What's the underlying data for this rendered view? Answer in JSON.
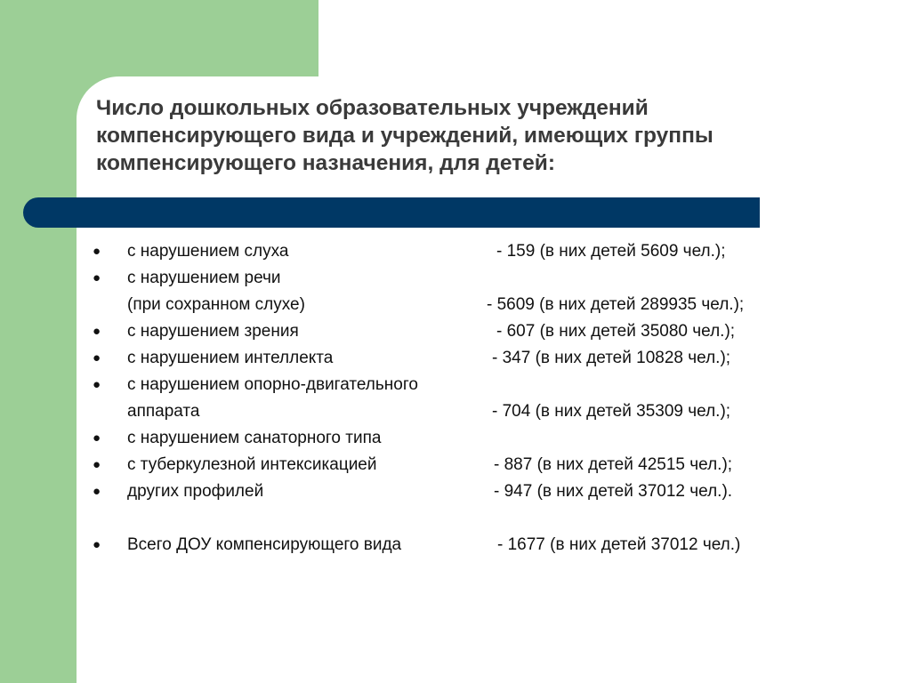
{
  "title_lines": [
    "Число дошкольных образовательных учреждений",
    "компенсирующего вида и учреждений, имеющих группы",
    "компенсирующего назначения, для детей:"
  ],
  "bullet_char": "●",
  "rows": [
    {
      "label": "с нарушением слуха",
      "value": "- 159 (в них детей 5609 чел.);"
    },
    {
      "label": "с нарушением речи",
      "value": ""
    },
    {
      "label": "(при сохранном слухе)",
      "value": "- 5609 (в них детей 289935 чел.);"
    },
    {
      "label": "с нарушением зрения",
      "value": "- 607 (в них детей 35080 чел.);"
    },
    {
      "label": "с нарушением интеллекта",
      "value": "- 347 (в них детей 10828 чел.);"
    },
    {
      "label": "с нарушением опорно-двигательного",
      "value": ""
    },
    {
      "label": "аппарата",
      "value": "- 704 (в них детей 35309 чел.);"
    },
    {
      "label": "с нарушением санаторного типа",
      "value": ""
    },
    {
      "label": "с туберкулезной интексикацией",
      "value": "- 887 (в них детей 42515 чел.);"
    },
    {
      "label": "других профилей",
      "value": "- 947 (в них детей 37012 чел.)."
    },
    {
      "label": "Всего ДОУ компенсирующего вида",
      "value": "- 1677 (в них детей 37012 чел.)"
    }
  ]
}
